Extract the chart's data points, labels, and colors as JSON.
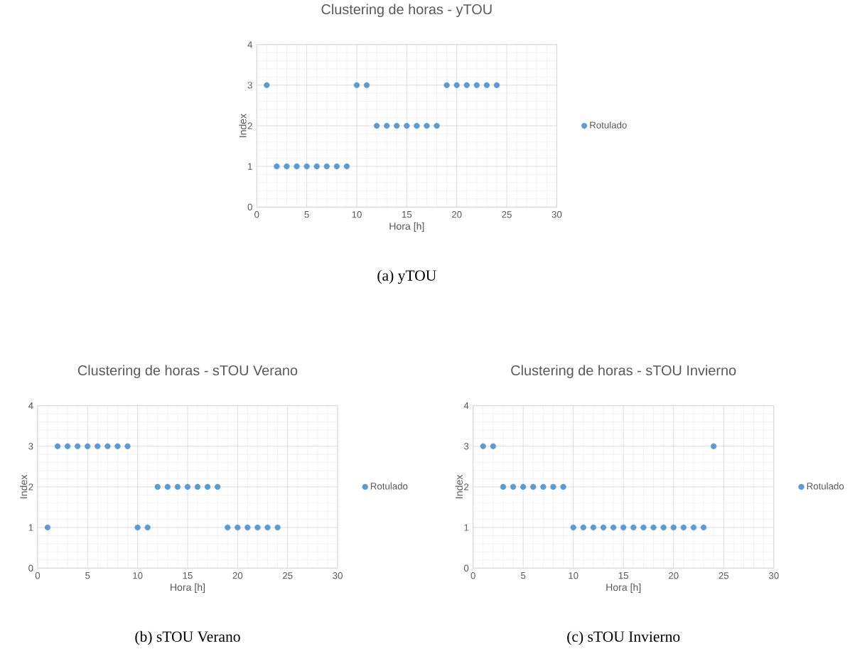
{
  "chart_data": [
    {
      "type": "scatter",
      "title": "Clustering de horas - yTOU",
      "xlabel": "Hora [h]",
      "ylabel": "Index",
      "x": [
        1,
        2,
        3,
        4,
        5,
        6,
        7,
        8,
        9,
        10,
        11,
        12,
        13,
        14,
        15,
        16,
        17,
        18,
        19,
        20,
        21,
        22,
        23,
        24
      ],
      "series": [
        {
          "name": "Rotulado",
          "color": "#5b9bd5",
          "values": [
            3,
            1,
            1,
            1,
            1,
            1,
            1,
            1,
            1,
            3,
            3,
            2,
            2,
            2,
            2,
            2,
            2,
            2,
            3,
            3,
            3,
            3,
            3,
            3
          ]
        }
      ],
      "xlim": [
        0,
        30
      ],
      "xticks": [
        0,
        5,
        10,
        15,
        20,
        25,
        30
      ],
      "ylim": [
        0,
        4
      ],
      "yticks": [
        0,
        1,
        2,
        3,
        4
      ],
      "grid": true,
      "legend": "right",
      "marker": "circle",
      "annotations": [
        "(a) yTOU"
      ]
    },
    {
      "type": "scatter",
      "title": "Clustering de horas - sTOU Verano",
      "xlabel": "Hora [h]",
      "ylabel": "Index",
      "x": [
        1,
        2,
        3,
        4,
        5,
        6,
        7,
        8,
        9,
        10,
        11,
        12,
        13,
        14,
        15,
        16,
        17,
        18,
        19,
        20,
        21,
        22,
        23,
        24
      ],
      "series": [
        {
          "name": "Rotulado",
          "color": "#5b9bd5",
          "values": [
            1,
            3,
            3,
            3,
            3,
            3,
            3,
            3,
            3,
            1,
            1,
            2,
            2,
            2,
            2,
            2,
            2,
            2,
            1,
            1,
            1,
            1,
            1,
            1
          ]
        }
      ],
      "xlim": [
        0,
        30
      ],
      "xticks": [
        0,
        5,
        10,
        15,
        20,
        25,
        30
      ],
      "ylim": [
        0,
        4
      ],
      "yticks": [
        0,
        1,
        2,
        3,
        4
      ],
      "grid": true,
      "legend": "right",
      "marker": "circle",
      "annotations": [
        "(b) sTOU Verano"
      ]
    },
    {
      "type": "scatter",
      "title": "Clustering de horas - sTOU Invierno",
      "xlabel": "Hora [h]",
      "ylabel": "Index",
      "x": [
        1,
        2,
        3,
        4,
        5,
        6,
        7,
        8,
        9,
        10,
        11,
        12,
        13,
        14,
        15,
        16,
        17,
        18,
        19,
        20,
        21,
        22,
        23,
        24
      ],
      "series": [
        {
          "name": "Rotulado",
          "color": "#5b9bd5",
          "values": [
            3,
            3,
            2,
            2,
            2,
            2,
            2,
            2,
            2,
            1,
            1,
            1,
            1,
            1,
            1,
            1,
            1,
            1,
            1,
            1,
            1,
            1,
            1,
            3
          ]
        }
      ],
      "xlim": [
        0,
        30
      ],
      "xticks": [
        0,
        5,
        10,
        15,
        20,
        25,
        30
      ],
      "ylim": [
        0,
        4
      ],
      "yticks": [
        0,
        1,
        2,
        3,
        4
      ],
      "grid": true,
      "legend": "right",
      "marker": "circle",
      "annotations": [
        "(c) sTOU Invierno"
      ]
    }
  ]
}
